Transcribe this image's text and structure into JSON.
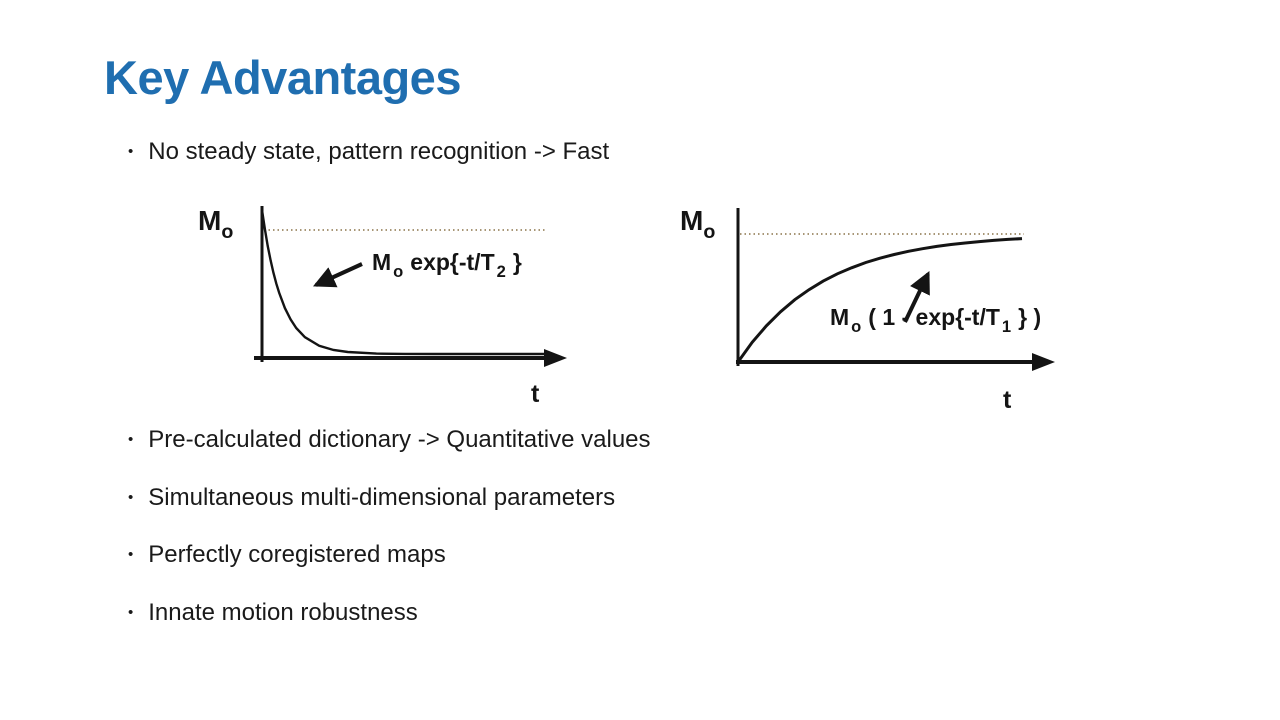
{
  "slide": {
    "title": "Key Advantages",
    "bullet_glyph": "•",
    "bullets": [
      "No steady state, pattern recognition -> Fast",
      "Pre-calculated dictionary -> Quantitative values",
      "Simultaneous multi-dimensional parameters",
      "Perfectly coregistered maps",
      "Innate motion robustness"
    ]
  },
  "colors": {
    "title": "#1f6eb0",
    "text": "#1a1a1a",
    "ink": "#141414",
    "dotted_asymptote": "#8a7349"
  },
  "chart_data": [
    {
      "type": "line",
      "name": "t2-decay-curve",
      "xlabel": "t",
      "ylabel_base": "M",
      "ylabel_sub": "o",
      "eq": {
        "base1": "M",
        "sub1": "o",
        "base2": "exp{-t/T",
        "sub2": "2",
        "base3": "}"
      },
      "asymptote": {
        "style": "dotted",
        "level": 1
      },
      "x_range": [
        0,
        1
      ],
      "y_range": [
        0,
        1
      ],
      "legend": "none",
      "grid": false,
      "points": [
        [
          0,
          1
        ],
        [
          0.01,
          0.867
        ],
        [
          0.02,
          0.751
        ],
        [
          0.03,
          0.651
        ],
        [
          0.04,
          0.565
        ],
        [
          0.05,
          0.489
        ],
        [
          0.06,
          0.424
        ],
        [
          0.08,
          0.319
        ],
        [
          0.1,
          0.24
        ],
        [
          0.12,
          0.18
        ],
        [
          0.15,
          0.117
        ],
        [
          0.2,
          0.057
        ],
        [
          0.25,
          0.028
        ],
        [
          0.3,
          0.014
        ],
        [
          0.4,
          0.003
        ],
        [
          0.5,
          0.001
        ],
        [
          0.6,
          0
        ],
        [
          0.7,
          0
        ],
        [
          0.85,
          0
        ],
        [
          1,
          0
        ]
      ]
    },
    {
      "type": "line",
      "name": "t1-recovery-curve",
      "xlabel": "t",
      "ylabel_base": "M",
      "ylabel_sub": "o",
      "eq": {
        "base1": "M",
        "sub1": "o",
        "base2": "( 1 - exp{-t/T",
        "sub2": "1",
        "base3": "} )"
      },
      "asymptote": {
        "style": "dotted",
        "level": 1
      },
      "x_range": [
        0,
        1
      ],
      "y_range": [
        0,
        1
      ],
      "legend": "none",
      "grid": false,
      "points": [
        [
          0,
          0
        ],
        [
          0.05,
          0.154
        ],
        [
          0.1,
          0.283
        ],
        [
          0.15,
          0.393
        ],
        [
          0.2,
          0.487
        ],
        [
          0.25,
          0.565
        ],
        [
          0.3,
          0.632
        ],
        [
          0.35,
          0.689
        ],
        [
          0.4,
          0.736
        ],
        [
          0.45,
          0.777
        ],
        [
          0.5,
          0.811
        ],
        [
          0.55,
          0.84
        ],
        [
          0.6,
          0.865
        ],
        [
          0.65,
          0.885
        ],
        [
          0.7,
          0.903
        ],
        [
          0.75,
          0.918
        ],
        [
          0.8,
          0.93
        ],
        [
          0.85,
          0.941
        ],
        [
          0.9,
          0.95
        ],
        [
          0.95,
          0.958
        ],
        [
          1,
          0.964
        ]
      ]
    }
  ]
}
